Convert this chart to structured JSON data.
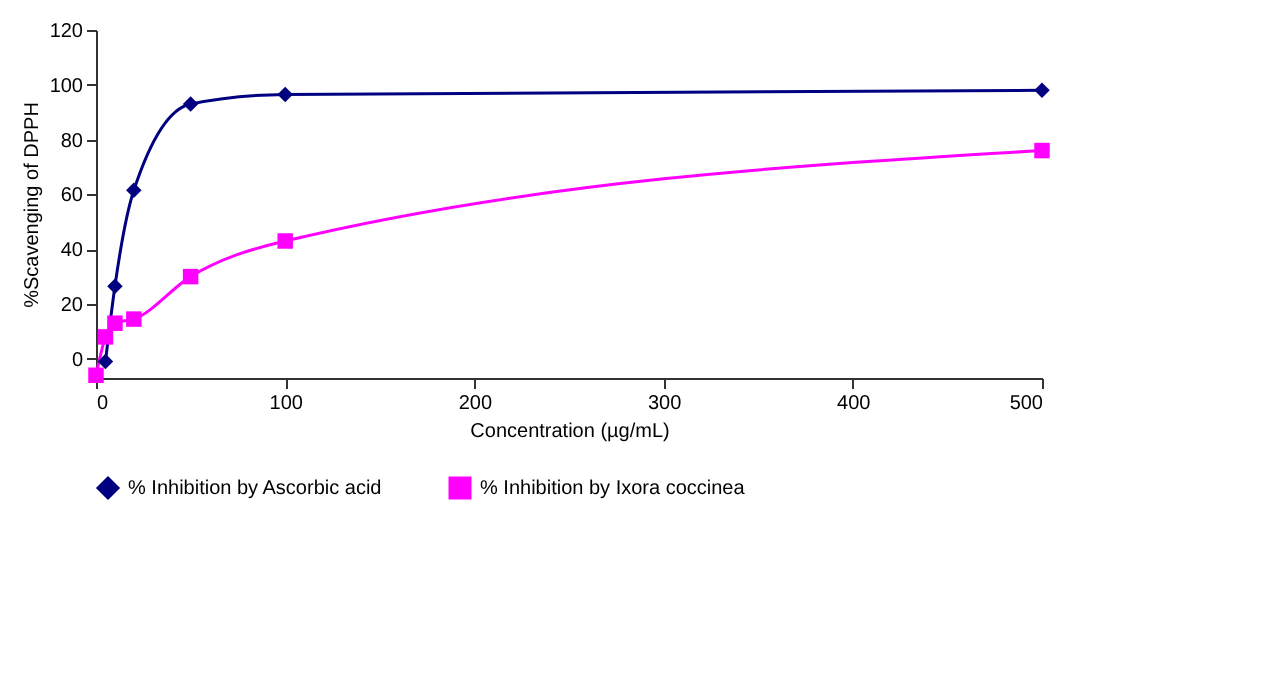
{
  "chart_data": {
    "type": "line",
    "xlabel": "Concentration (µg/mL)",
    "ylabel": "%Scavenging of DPPH",
    "xlim": [
      0,
      500
    ],
    "xticks": [
      0,
      100,
      200,
      300,
      400,
      500
    ],
    "ylim": [
      -7,
      120
    ],
    "yticks": [
      0,
      20,
      40,
      60,
      80,
      100,
      120
    ],
    "grid": false,
    "legend": "bottom",
    "line_style": "solid",
    "series": [
      {
        "name": "% Inhibition by Ascorbic acid",
        "color": "#000080",
        "marker": "diamond",
        "x": [
          5,
          10,
          20,
          50,
          100,
          500
        ],
        "values": [
          -1,
          26.5,
          61.5,
          93,
          96.5,
          98
        ]
      },
      {
        "name": "% Inhibition by Ixora coccinea",
        "color": "#ff00ff",
        "marker": "square",
        "x": [
          0,
          5,
          10,
          20,
          50,
          100,
          500
        ],
        "values": [
          -6,
          8,
          13,
          14.5,
          30,
          43,
          76
        ]
      }
    ]
  }
}
